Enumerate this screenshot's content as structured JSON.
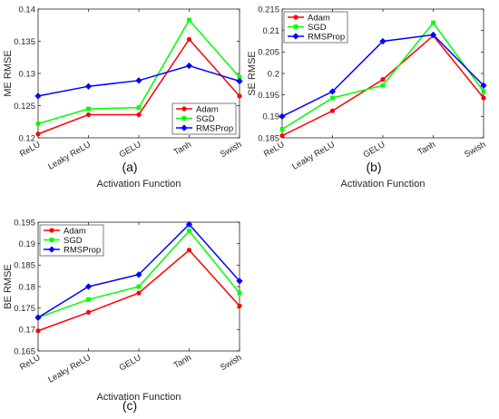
{
  "chart_data": [
    {
      "type": "line",
      "panel_label": "(a)",
      "xlabel": "Activation Function",
      "ylabel": "ME RMSE",
      "categories": [
        "ReLU",
        "Leaky ReLU",
        "GELU",
        "Tanh",
        "Swish"
      ],
      "ylim": [
        0.12,
        0.14
      ],
      "yticks": [
        "0.12",
        "0.125",
        "0.13",
        "0.135",
        "0.14"
      ],
      "grid": false,
      "legend_position": "bottom-right",
      "series": [
        {
          "name": "Adam",
          "color": "#ff0000",
          "marker": "circle",
          "values": [
            0.1206,
            0.1236,
            0.1236,
            0.1353,
            0.1265
          ]
        },
        {
          "name": "SGD",
          "color": "#00ff00",
          "marker": "square",
          "values": [
            0.1222,
            0.1245,
            0.1247,
            0.1383,
            0.1294
          ]
        },
        {
          "name": "RMSProp",
          "color": "#0000ff",
          "marker": "diamond",
          "values": [
            0.1265,
            0.128,
            0.1289,
            0.1312,
            0.1288
          ]
        }
      ]
    },
    {
      "type": "line",
      "panel_label": "(b)",
      "xlabel": "Activation Function",
      "ylabel": "SE RMSE",
      "categories": [
        "ReLU",
        "Leaky ReLU",
        "GELU",
        "Tanh",
        "Swish"
      ],
      "ylim": [
        0.185,
        0.215
      ],
      "yticks": [
        "0.185",
        "0.19",
        "0.195",
        "0.2",
        "0.205",
        "0.21",
        "0.215"
      ],
      "grid": false,
      "legend_position": "top-left",
      "series": [
        {
          "name": "Adam",
          "color": "#ff0000",
          "marker": "circle",
          "values": [
            0.1855,
            0.1913,
            0.1986,
            0.2088,
            0.1943
          ]
        },
        {
          "name": "SGD",
          "color": "#00ff00",
          "marker": "square",
          "values": [
            0.187,
            0.1943,
            0.1972,
            0.2118,
            0.1958
          ]
        },
        {
          "name": "RMSProp",
          "color": "#0000ff",
          "marker": "diamond",
          "values": [
            0.19,
            0.1958,
            0.2075,
            0.209,
            0.1972
          ]
        }
      ]
    },
    {
      "type": "line",
      "panel_label": "(c)",
      "xlabel": "Activation Function",
      "ylabel": "BE RMSE",
      "categories": [
        "ReLU",
        "Leaky ReLU",
        "GELU",
        "Tanh",
        "Swish"
      ],
      "ylim": [
        0.165,
        0.195
      ],
      "yticks": [
        "0.165",
        "0.17",
        "0.175",
        "0.18",
        "0.185",
        "0.19",
        "0.195"
      ],
      "grid": false,
      "legend_position": "top-left",
      "series": [
        {
          "name": "Adam",
          "color": "#ff0000",
          "marker": "circle",
          "values": [
            0.1697,
            0.174,
            0.1785,
            0.1885,
            0.1755
          ]
        },
        {
          "name": "SGD",
          "color": "#00ff00",
          "marker": "square",
          "values": [
            0.1728,
            0.177,
            0.18,
            0.193,
            0.1785
          ]
        },
        {
          "name": "RMSProp",
          "color": "#0000ff",
          "marker": "diamond",
          "values": [
            0.1728,
            0.18,
            0.1828,
            0.1945,
            0.1813
          ]
        }
      ]
    }
  ]
}
